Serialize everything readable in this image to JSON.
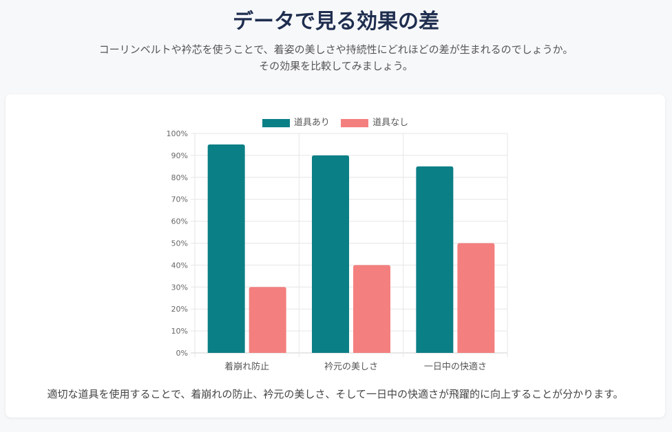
{
  "header": {
    "title": "データで見る効果の差",
    "subtitle": "コーリンベルトや衿芯を使うことで、着姿の美しさや持続性にどれほどの差が生まれるのでしょうか。その効果を比較してみましょう。"
  },
  "chart_data": {
    "type": "bar",
    "categories": [
      "着崩れ防止",
      "衿元の美しさ",
      "一日中の快適さ"
    ],
    "series": [
      {
        "name": "道具あり",
        "values": [
          95,
          90,
          85
        ],
        "color": "#0b7f86"
      },
      {
        "name": "道具なし",
        "values": [
          30,
          40,
          50
        ],
        "color": "#f47f7f"
      }
    ],
    "ylim": [
      0,
      100
    ],
    "yticks": [
      "0%",
      "10%",
      "20%",
      "30%",
      "40%",
      "50%",
      "60%",
      "70%",
      "80%",
      "90%",
      "100%"
    ],
    "grid": true,
    "legend_position": "top"
  },
  "caption": "適切な道具を使用することで、着崩れの防止、衿元の美しさ、そして一日中の快適さが飛躍的に向上することが分かります。"
}
